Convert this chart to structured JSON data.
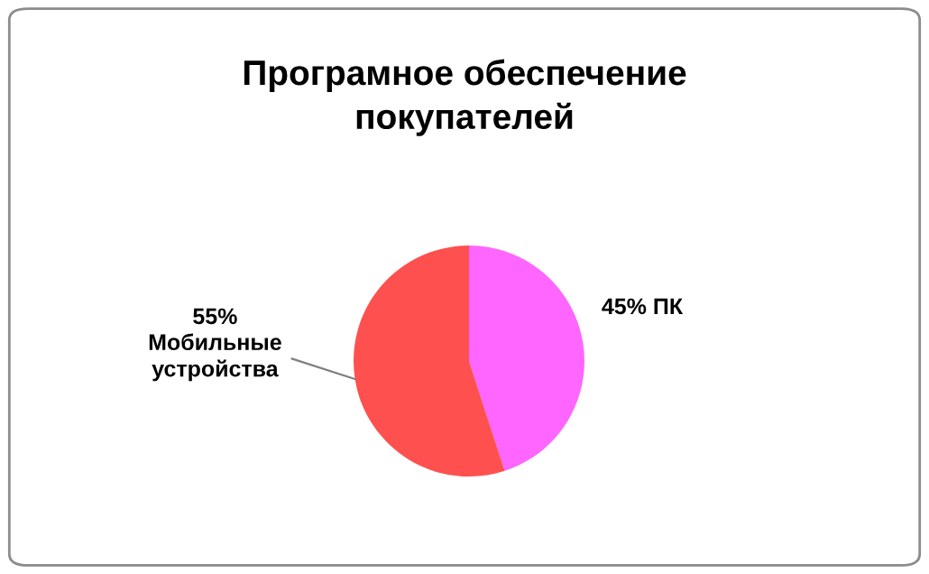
{
  "chart_data": {
    "type": "pie",
    "title": "Програмное обеспечение\nпокупателей",
    "categories": [
      "ПК",
      "Мобильные устройства"
    ],
    "values": [
      45,
      55
    ],
    "colors": [
      "#ff66ff",
      "#ff5050"
    ],
    "value_labels": [
      "45%",
      "55%"
    ],
    "legend": false
  }
}
